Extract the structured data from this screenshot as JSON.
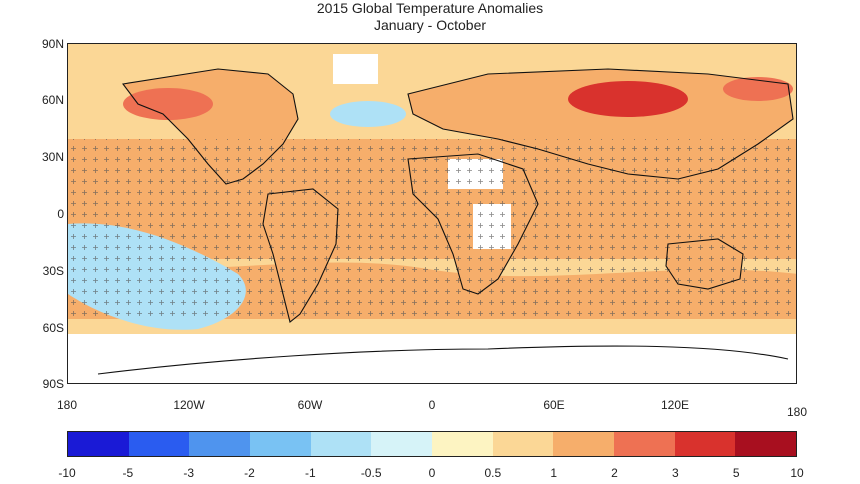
{
  "title": "2015 Global Temperature Anomalies",
  "subtitle": "January - October",
  "map": {
    "lat_labels": [
      "90N",
      "60N",
      "30N",
      "0",
      "30S",
      "60S",
      "90S"
    ],
    "lon_labels": [
      "180",
      "120W",
      "60W",
      "0",
      "60E",
      "120E"
    ],
    "lon_label_end": "180"
  },
  "colorbar": {
    "ticks": [
      "-10",
      "-5",
      "-3",
      "-2",
      "-1",
      "-0.5",
      "0",
      "0.5",
      "1",
      "2",
      "3",
      "5",
      "10"
    ],
    "colors": [
      "#1a1ad6",
      "#2a5cf0",
      "#4f94ee",
      "#79c2f3",
      "#aee1f6",
      "#d6f3f8",
      "#fdf4c2",
      "#fbd796",
      "#f6ae6b",
      "#ee7153",
      "#d9322d",
      "#a80f1f"
    ]
  },
  "legend_colors": {
    "ocean_warm": "#fbd796",
    "land_warm": "#f6ae6b",
    "hot": "#ee7153",
    "very_hot": "#d9322d",
    "cool": "#aee1f6",
    "mild": "#fdf4c2",
    "missing": "#ffffff"
  }
}
